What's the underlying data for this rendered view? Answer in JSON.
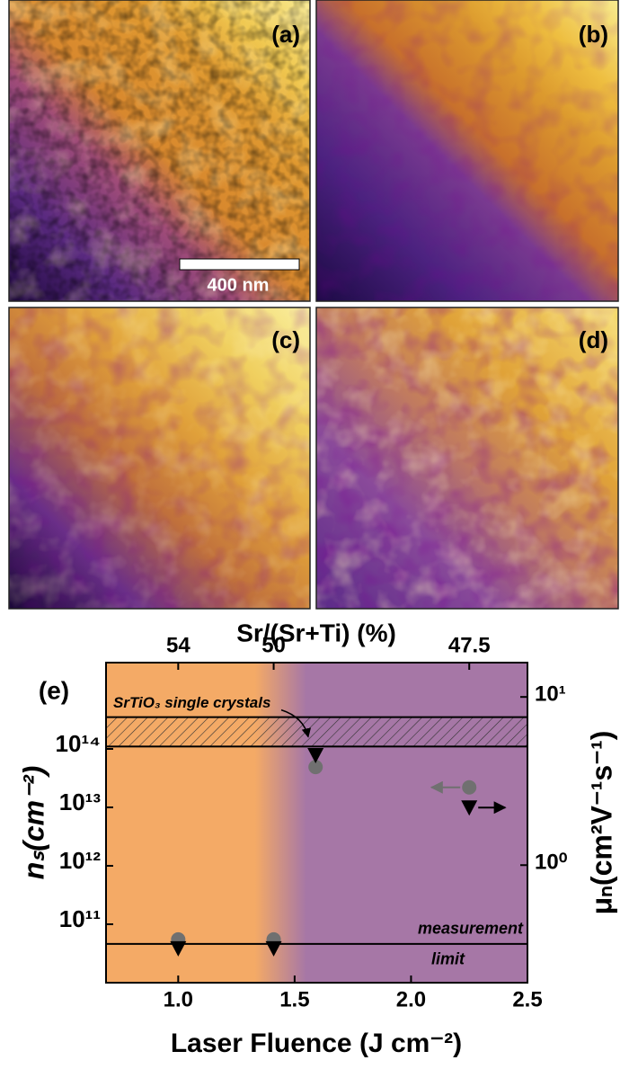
{
  "images": {
    "panels": [
      {
        "label": "(a)"
      },
      {
        "label": "(b)"
      },
      {
        "label": "(c)"
      },
      {
        "label": "(d)"
      }
    ],
    "scale_bar": "400 nm"
  },
  "chart_data": {
    "type": "scatter",
    "panel_label": "(e)",
    "xlabel": "Laser Fluence (J cm⁻²)",
    "x2label": "Sr/(Sr+Ti) (%)",
    "ylabel": "nₛ(cm⁻²)",
    "y2label": "μₙ(cm²V⁻¹s⁻¹)",
    "x": [
      1.0,
      1.41,
      1.59,
      2.25
    ],
    "series": [
      {
        "marker": "circle",
        "color": "#707070",
        "axis": "y",
        "values": [
          55000000000.0,
          55000000000.0,
          49000000000000.0,
          22000000000000.0
        ]
      },
      {
        "marker": "triangle",
        "color": "#000000",
        "axis": "y2",
        "values": [
          0.32,
          0.32,
          4.5,
          2.2
        ]
      }
    ],
    "xlim": [
      0.69,
      2.5
    ],
    "xticks": [
      {
        "value": 1,
        "label": "1.0"
      },
      1.5,
      {
        "value": 2,
        "label": "2.0"
      },
      2.5
    ],
    "x2ticks": [
      {
        "value": 1.0,
        "label": "54"
      },
      {
        "value": 1.41,
        "label": "50"
      },
      {
        "value": 2.25,
        "label": "47.5"
      }
    ],
    "ylim": [
      10000000000.0,
      3000000000000000.0
    ],
    "log_y": true,
    "yticks": [
      {
        "value": 100000000000.0,
        "label": "10¹¹"
      },
      {
        "value": 1000000000000.0,
        "label": "10¹²"
      },
      {
        "value": 10000000000000.0,
        "label": "10¹³"
      },
      {
        "value": 100000000000000.0,
        "label": "10¹⁴"
      }
    ],
    "y2lim": [
      0.2,
      16
    ],
    "log_y2": true,
    "y2ticks": [
      {
        "value": 1,
        "label": "10⁰"
      },
      {
        "value": 10,
        "label": "10¹"
      }
    ],
    "band": {
      "label": "SrTiO₃ single crystals",
      "range": [
        110000000000000.0,
        350000000000000.0
      ]
    },
    "limit": {
      "label": [
        "measurement",
        "limit"
      ],
      "value": 46000000000.0
    },
    "background": {
      "colors": [
        "#f4aa66",
        "#a677a6"
      ],
      "transition": [
        1.33,
        1.55
      ]
    }
  }
}
